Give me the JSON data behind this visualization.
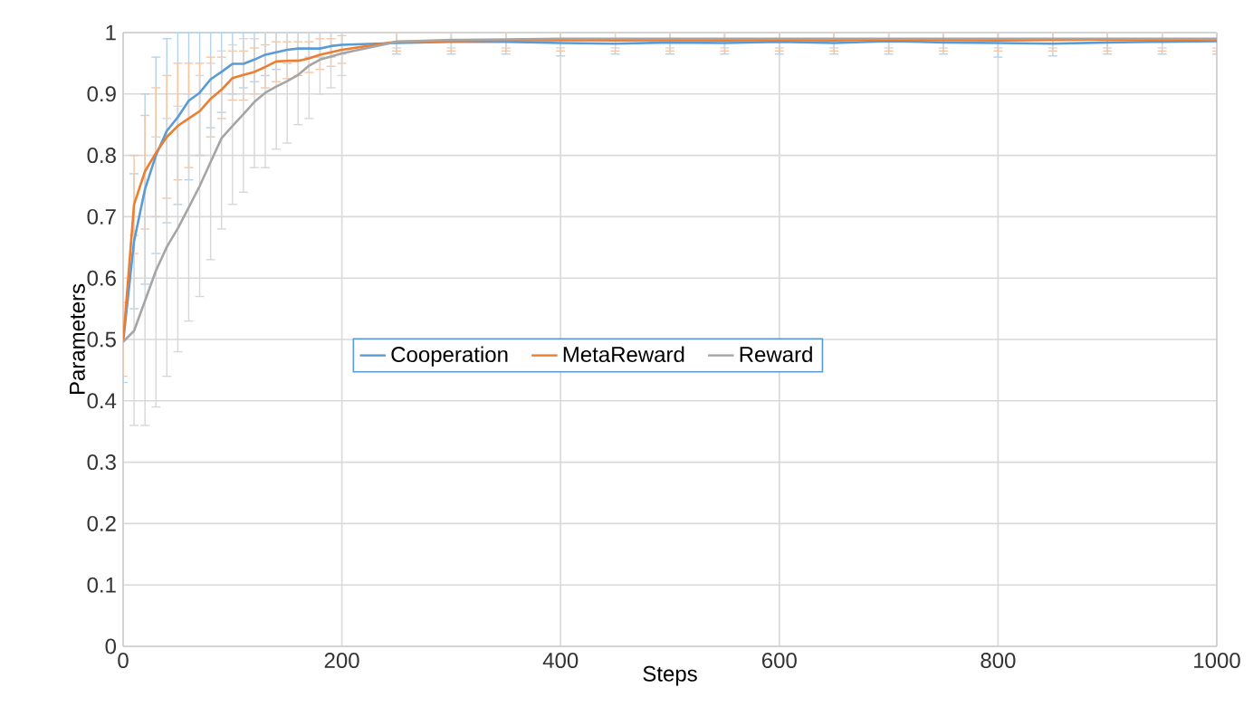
{
  "chart_data": {
    "type": "line",
    "xlabel": "Steps",
    "ylabel": "Parameters",
    "x": [
      0,
      10,
      20,
      30,
      40,
      50,
      60,
      70,
      80,
      90,
      100,
      110,
      120,
      130,
      140,
      150,
      160,
      170,
      180,
      190,
      200,
      250,
      300,
      350,
      400,
      450,
      500,
      550,
      600,
      650,
      700,
      750,
      800,
      850,
      900,
      950,
      1000
    ],
    "series": [
      {
        "name": "Cooperation",
        "color": "#5b9bd5",
        "values": [
          0.496,
          0.66,
          0.745,
          0.8,
          0.84,
          0.862,
          0.889,
          0.902,
          0.924,
          0.936,
          0.949,
          0.949,
          0.956,
          0.964,
          0.968,
          0.972,
          0.974,
          0.974,
          0.974,
          0.978,
          0.98,
          0.983,
          0.985,
          0.985,
          0.983,
          0.982,
          0.984,
          0.983,
          0.985,
          0.983,
          0.986,
          0.984,
          0.983,
          0.982,
          0.984,
          0.985,
          0.986
        ],
        "errors": [
          [
            0.43,
            0.56
          ],
          [
            0.55,
            0.77
          ],
          [
            0.59,
            0.9
          ],
          [
            0.64,
            0.96
          ],
          [
            0.69,
            0.99
          ],
          [
            0.72,
            1
          ],
          [
            0.76,
            1
          ],
          [
            0.8,
            1
          ],
          [
            0.845,
            1
          ],
          [
            0.87,
            1
          ],
          [
            0.9,
            1
          ],
          [
            0.91,
            1
          ],
          [
            0.92,
            1
          ],
          [
            0.93,
            1
          ],
          [
            0.94,
            1
          ],
          [
            0.95,
            1
          ],
          [
            0.955,
            1
          ],
          [
            0.96,
            1
          ],
          [
            0.96,
            1
          ],
          [
            0.96,
            1
          ],
          [
            0.965,
            1
          ],
          [
            0.965,
            1
          ],
          [
            0.965,
            1
          ],
          [
            0.965,
            1
          ],
          [
            0.962,
            1
          ],
          [
            0.965,
            1
          ],
          [
            0.965,
            1
          ],
          [
            0.965,
            1
          ],
          [
            0.965,
            1
          ],
          [
            0.965,
            1
          ],
          [
            0.965,
            1
          ],
          [
            0.965,
            1
          ],
          [
            0.96,
            1
          ],
          [
            0.962,
            1
          ],
          [
            0.965,
            1
          ],
          [
            0.965,
            1
          ],
          [
            0.965,
            1
          ]
        ]
      },
      {
        "name": "MetaReward",
        "color": "#ed7d31",
        "values": [
          0.496,
          0.72,
          0.774,
          0.804,
          0.83,
          0.848,
          0.86,
          0.872,
          0.892,
          0.907,
          0.926,
          0.931,
          0.936,
          0.944,
          0.953,
          0.954,
          0.954,
          0.958,
          0.964,
          0.968,
          0.972,
          0.985,
          0.986,
          0.987,
          0.988,
          0.987,
          0.988,
          0.987,
          0.988,
          0.987,
          0.989,
          0.988,
          0.987,
          0.988,
          0.989,
          0.988,
          0.989
        ],
        "errors": [
          [
            0.44,
            0.56
          ],
          [
            0.64,
            0.8
          ],
          [
            0.68,
            0.865
          ],
          [
            0.7,
            0.91
          ],
          [
            0.73,
            0.93
          ],
          [
            0.76,
            0.95
          ],
          [
            0.78,
            0.95
          ],
          [
            0.8,
            0.95
          ],
          [
            0.83,
            0.96
          ],
          [
            0.86,
            0.96
          ],
          [
            0.89,
            0.97
          ],
          [
            0.89,
            0.97
          ],
          [
            0.9,
            0.975
          ],
          [
            0.91,
            0.98
          ],
          [
            0.92,
            0.985
          ],
          [
            0.925,
            0.985
          ],
          [
            0.93,
            0.985
          ],
          [
            0.935,
            0.985
          ],
          [
            0.94,
            0.99
          ],
          [
            0.945,
            0.99
          ],
          [
            0.95,
            0.995
          ],
          [
            0.97,
            1
          ],
          [
            0.97,
            1
          ],
          [
            0.97,
            1
          ],
          [
            0.97,
            1
          ],
          [
            0.97,
            1
          ],
          [
            0.97,
            1
          ],
          [
            0.97,
            1
          ],
          [
            0.97,
            1
          ],
          [
            0.97,
            1
          ],
          [
            0.97,
            1
          ],
          [
            0.97,
            1
          ],
          [
            0.97,
            1
          ],
          [
            0.97,
            1
          ],
          [
            0.97,
            1
          ],
          [
            0.97,
            1
          ],
          [
            0.97,
            1
          ]
        ]
      },
      {
        "name": "Reward",
        "color": "#a5a5a5",
        "values": [
          0.496,
          0.514,
          0.563,
          0.612,
          0.651,
          0.681,
          0.715,
          0.75,
          0.789,
          0.828,
          0.848,
          0.867,
          0.887,
          0.902,
          0.912,
          0.921,
          0.931,
          0.946,
          0.956,
          0.961,
          0.966,
          0.985,
          0.988,
          0.989,
          0.99,
          0.99,
          0.99,
          0.99,
          0.99,
          0.99,
          0.99,
          0.99,
          0.99,
          0.99,
          0.99,
          0.99,
          0.99
        ],
        "errors": [
          null,
          [
            0.36,
            0.67
          ],
          [
            0.36,
            0.76
          ],
          [
            0.39,
            0.83
          ],
          [
            0.44,
            0.86
          ],
          [
            0.48,
            0.88
          ],
          [
            0.53,
            0.9
          ],
          [
            0.57,
            0.93
          ],
          [
            0.63,
            0.95
          ],
          [
            0.68,
            0.97
          ],
          [
            0.72,
            0.98
          ],
          [
            0.74,
            0.99
          ],
          [
            0.78,
            0.99
          ],
          [
            0.78,
            1
          ],
          [
            0.81,
            1
          ],
          [
            0.82,
            1
          ],
          [
            0.85,
            1
          ],
          [
            0.86,
            1
          ],
          [
            0.9,
            1
          ],
          [
            0.91,
            1
          ],
          [
            0.93,
            1
          ],
          [
            0.975,
            1
          ],
          [
            0.975,
            1
          ],
          [
            0.975,
            1
          ],
          [
            0.975,
            1
          ],
          [
            0.975,
            1
          ],
          [
            0.975,
            1
          ],
          [
            0.975,
            1
          ],
          [
            0.975,
            1
          ],
          [
            0.975,
            1
          ],
          [
            0.975,
            1
          ],
          [
            0.975,
            1
          ],
          [
            0.975,
            1
          ],
          [
            0.975,
            1
          ],
          [
            0.975,
            1
          ],
          [
            0.975,
            1
          ],
          [
            0.975,
            1
          ]
        ]
      }
    ],
    "xlim": [
      0,
      1000
    ],
    "xticks": [
      0,
      200,
      400,
      600,
      800,
      1000
    ],
    "ylim": [
      0,
      1
    ],
    "yticks": [
      0,
      0.1,
      0.2,
      0.3,
      0.4,
      0.5,
      0.6,
      0.7,
      0.8,
      0.9,
      1
    ],
    "grid": true,
    "legend": "center",
    "marker": "none",
    "line_style": "solid"
  }
}
